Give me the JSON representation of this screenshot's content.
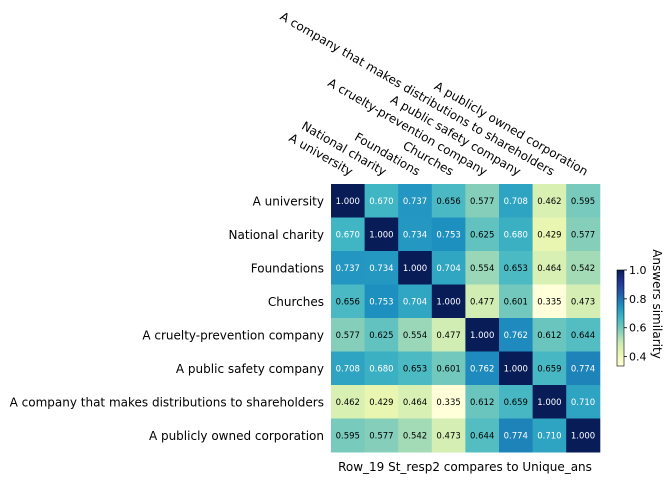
{
  "chart_data": {
    "type": "heatmap",
    "title": "",
    "xlabel": "Row_19 St_resp2 compares to Unique_ans",
    "ylabel": "",
    "labels": [
      "A university",
      "National charity",
      "Foundations",
      "Churches",
      "A cruelty-prevention company",
      "A public safety company",
      "A company that makes distributions to shareholders",
      "A publicly owned corporation"
    ],
    "values": [
      [
        1.0,
        0.67,
        0.737,
        0.656,
        0.577,
        0.708,
        0.462,
        0.595
      ],
      [
        0.67,
        1.0,
        0.734,
        0.753,
        0.625,
        0.68,
        0.429,
        0.577
      ],
      [
        0.737,
        0.734,
        1.0,
        0.704,
        0.554,
        0.653,
        0.464,
        0.542
      ],
      [
        0.656,
        0.753,
        0.704,
        1.0,
        0.477,
        0.601,
        0.335,
        0.473
      ],
      [
        0.577,
        0.625,
        0.554,
        0.477,
        1.0,
        0.762,
        0.612,
        0.644
      ],
      [
        0.708,
        0.68,
        0.653,
        0.601,
        0.762,
        1.0,
        0.659,
        0.774
      ],
      [
        0.462,
        0.429,
        0.464,
        0.335,
        0.612,
        0.659,
        1.0,
        0.71
      ],
      [
        0.595,
        0.577,
        0.542,
        0.473,
        0.644,
        0.774,
        0.71,
        1.0
      ]
    ],
    "value_format": "3 decimals",
    "colormap": "YlGnBu",
    "colorbar": {
      "label": "Answers similarity",
      "vmin": 0.335,
      "vmax": 1.0,
      "ticks": [
        "0.4",
        "0.6",
        "0.8",
        "1.0"
      ]
    }
  }
}
